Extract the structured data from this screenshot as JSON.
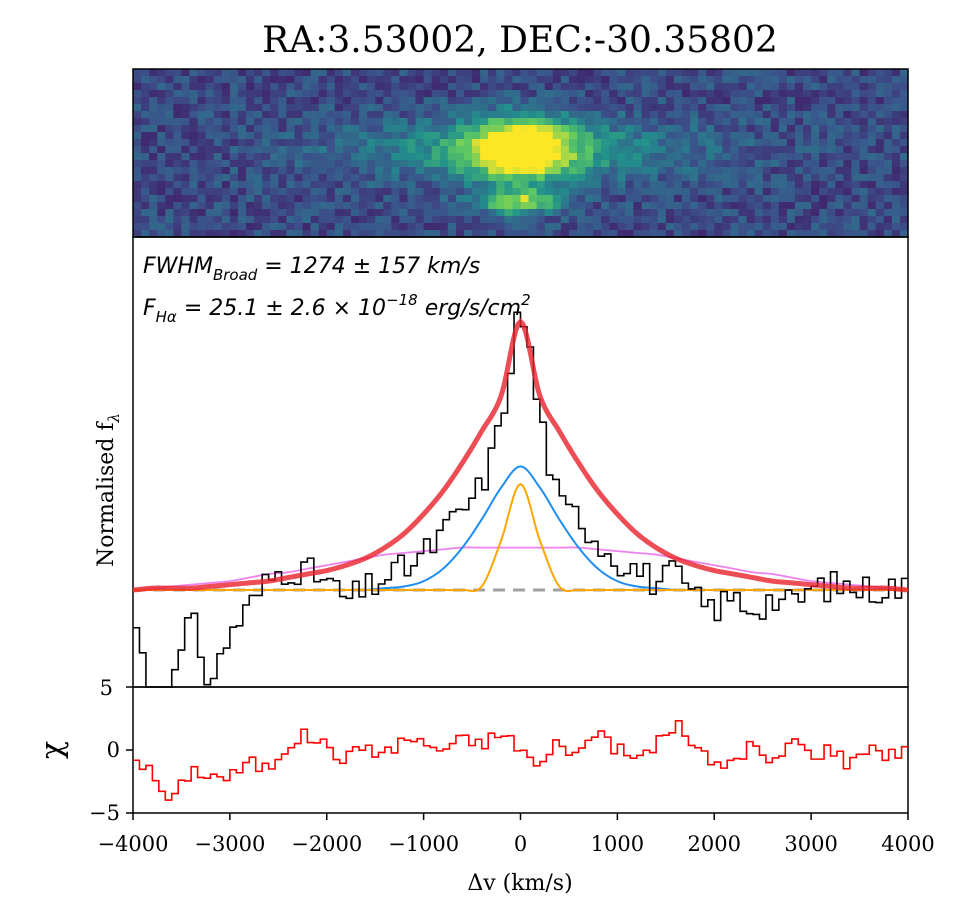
{
  "title": "RA:3.53002, DEC:-30.35802",
  "annotations": {
    "fwhm_label": "FWHM",
    "fwhm_sub": "Broad",
    "fwhm_value": " = 1274 ± 157 km/s",
    "flux_label": "F",
    "flux_sub": "Hα",
    "flux_value": " = 25.1 ± 2.6 × 10",
    "flux_exp": "−18",
    "flux_units": " erg/s/cm",
    "flux_units_exp": "2"
  },
  "ylabel_spectrum": "Normalised f",
  "ylabel_spectrum_sub": "λ",
  "ylabel_residual": "χ",
  "xlabel": "Δv (km/s)",
  "colors": {
    "data": "#000000",
    "total_fit": "#e8212b",
    "broad": "#1f8ef0",
    "narrow": "#ffa500",
    "very_broad": "#ee82ee",
    "continuum": "#a0a0a0",
    "residual": "#ff0000"
  },
  "chart_data": [
    {
      "type": "heatmap",
      "name": "2D spectrum cutout",
      "colormap": "viridis",
      "x_range": [
        -4000,
        4000
      ],
      "feature": "bright emission centered near 0 km/s"
    },
    {
      "type": "line",
      "xlim": [
        -4000,
        4000
      ],
      "ylim": [
        -0.55,
        2.0
      ],
      "x": [
        -4000,
        -3800,
        -3600,
        -3400,
        -3200,
        -3000,
        -2800,
        -2600,
        -2400,
        -2200,
        -2000,
        -1800,
        -1600,
        -1400,
        -1200,
        -1000,
        -800,
        -600,
        -400,
        -200,
        0,
        200,
        400,
        600,
        800,
        1000,
        1200,
        1400,
        1600,
        1800,
        2000,
        2200,
        2400,
        2600,
        2800,
        3000,
        3200,
        3400,
        3600,
        3800,
        4000
      ],
      "series": [
        {
          "values": [
            -0.15,
            -0.6,
            -0.55,
            -0.2,
            -0.5,
            -0.25,
            -0.1,
            0.05,
            0.12,
            0.1,
            0.05,
            -0.05,
            0.0,
            0.07,
            0.12,
            0.2,
            0.32,
            0.45,
            0.6,
            0.95,
            1.55,
            1.0,
            0.5,
            0.42,
            0.28,
            0.18,
            0.12,
            0.05,
            0.08,
            -0.05,
            -0.1,
            -0.05,
            -0.1,
            -0.05,
            -0.08,
            0.0,
            0.02,
            0.02,
            0.0,
            0.02,
            0.0
          ]
        },
        {
          "values": [
            0.0,
            0.01,
            0.01,
            0.01,
            0.02,
            0.03,
            0.04,
            0.05,
            0.07,
            0.09,
            0.11,
            0.14,
            0.18,
            0.24,
            0.32,
            0.43,
            0.56,
            0.72,
            0.9,
            1.1,
            1.52,
            1.1,
            0.9,
            0.72,
            0.56,
            0.43,
            0.32,
            0.24,
            0.18,
            0.14,
            0.11,
            0.09,
            0.07,
            0.05,
            0.04,
            0.03,
            0.02,
            0.01,
            0.01,
            0.01,
            0.0
          ]
        },
        {
          "values": [
            0.0,
            0.0,
            0.0,
            0.0,
            0.0,
            0.0,
            0.0,
            0.0,
            0.0,
            0.0,
            0.0,
            0.0,
            0.0,
            0.01,
            0.02,
            0.05,
            0.12,
            0.24,
            0.4,
            0.58,
            0.7,
            0.58,
            0.4,
            0.24,
            0.12,
            0.05,
            0.02,
            0.01,
            0.0,
            0.0,
            0.0,
            0.0,
            0.0,
            0.0,
            0.0,
            0.0,
            0.0,
            0.0,
            0.0,
            0.0,
            0.0
          ]
        },
        {
          "values": [
            0.0,
            0.0,
            0.0,
            0.0,
            0.0,
            0.0,
            0.0,
            0.0,
            0.0,
            0.0,
            0.0,
            0.0,
            0.0,
            0.0,
            0.0,
            0.0,
            0.0,
            0.0,
            0.02,
            0.28,
            0.6,
            0.28,
            0.02,
            0.0,
            0.0,
            0.0,
            0.0,
            0.0,
            0.0,
            0.0,
            0.0,
            0.0,
            0.0,
            0.0,
            0.0,
            0.0,
            0.0,
            0.0,
            0.0,
            0.0,
            0.0
          ]
        },
        {
          "values": [
            0.0,
            0.01,
            0.02,
            0.03,
            0.04,
            0.05,
            0.07,
            0.09,
            0.1,
            0.12,
            0.14,
            0.16,
            0.18,
            0.2,
            0.21,
            0.22,
            0.23,
            0.24,
            0.24,
            0.24,
            0.24,
            0.24,
            0.24,
            0.24,
            0.23,
            0.22,
            0.21,
            0.2,
            0.18,
            0.16,
            0.14,
            0.12,
            0.1,
            0.09,
            0.07,
            0.05,
            0.04,
            0.03,
            0.02,
            0.01,
            0.0
          ]
        },
        {
          "values": [
            0,
            0,
            0,
            0,
            0,
            0,
            0,
            0,
            0,
            0,
            0,
            0,
            0,
            0,
            0,
            0,
            0,
            0,
            0,
            0,
            0,
            0,
            0,
            0,
            0,
            0,
            0,
            0,
            0,
            0,
            0,
            0,
            0,
            0,
            0,
            0,
            0,
            0,
            0,
            0,
            0
          ]
        }
      ]
    },
    {
      "type": "line",
      "xlim": [
        -4000,
        4000
      ],
      "ylim": [
        -5,
        5
      ],
      "yticks": [
        -5,
        0,
        5
      ],
      "xticks": [
        -4000,
        -3000,
        -2000,
        -1000,
        0,
        1000,
        2000,
        3000,
        4000
      ],
      "xticklabels": [
        "−4000",
        "−3000",
        "−2000",
        "−1000",
        "0",
        "1000",
        "2000",
        "3000",
        "4000"
      ],
      "yticklabels": [
        "−5",
        "0",
        "5"
      ],
      "top_label": "5",
      "x": [
        -4000,
        -3800,
        -3600,
        -3400,
        -3200,
        -3000,
        -2800,
        -2600,
        -2400,
        -2200,
        -2000,
        -1800,
        -1600,
        -1400,
        -1200,
        -1000,
        -800,
        -600,
        -400,
        -200,
        0,
        200,
        400,
        600,
        800,
        1000,
        1200,
        1400,
        1600,
        1800,
        2000,
        2200,
        2400,
        2600,
        2800,
        3000,
        3200,
        3400,
        3600,
        3800,
        4000
      ],
      "series": [
        {
          "values": [
            -0.2,
            -2.0,
            -4.3,
            -1.5,
            -2.0,
            -2.2,
            -1.0,
            -1.5,
            0.5,
            1.2,
            0.3,
            -0.8,
            0.5,
            -0.5,
            1.0,
            0.5,
            0.0,
            0.8,
            0.5,
            1.3,
            0.2,
            -1.5,
            0.8,
            -0.5,
            1.8,
            0.0,
            -0.8,
            0.5,
            2.0,
            0.5,
            -1.5,
            -0.8,
            0.5,
            -1.5,
            1.0,
            -0.5,
            0.2,
            -1.2,
            0.5,
            -0.5,
            0.2
          ]
        }
      ]
    }
  ]
}
